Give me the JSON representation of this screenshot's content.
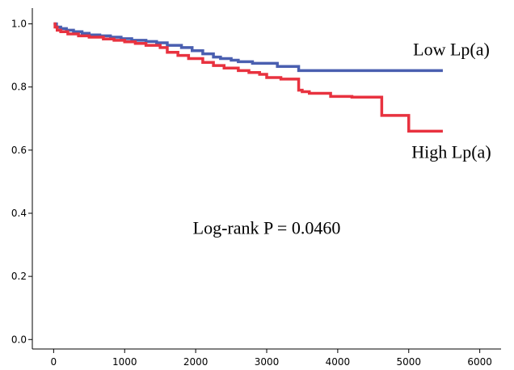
{
  "chart_data": {
    "type": "line",
    "title": "",
    "xlabel": "",
    "ylabel": "",
    "xlim": [
      -300,
      6300
    ],
    "ylim": [
      -0.03,
      1.05
    ],
    "x_ticks": [
      0,
      1000,
      2000,
      3000,
      4000,
      5000,
      6000
    ],
    "x_tick_labels": [
      "0",
      "1000",
      "2000",
      "3000",
      "4000",
      "5000",
      "6000"
    ],
    "y_ticks": [
      0.0,
      0.2,
      0.4,
      0.6,
      0.8,
      1.0
    ],
    "y_tick_labels": [
      "0.0",
      "0.2",
      "0.4",
      "0.6",
      "0.8",
      "1.0"
    ],
    "grid": false,
    "legend": "none",
    "step": true,
    "series": [
      {
        "name": "Low Lp(a)",
        "color": "#4a5fb0",
        "x": [
          0,
          40,
          100,
          180,
          280,
          400,
          500,
          650,
          800,
          950,
          1100,
          1300,
          1450,
          1600,
          1800,
          1950,
          2100,
          2250,
          2350,
          2500,
          2600,
          2700,
          2800,
          3000,
          3150,
          3300,
          3450,
          3800,
          4200,
          4600,
          5000,
          5480
        ],
        "values": [
          1.0,
          0.99,
          0.985,
          0.98,
          0.975,
          0.97,
          0.965,
          0.962,
          0.958,
          0.953,
          0.948,
          0.944,
          0.94,
          0.932,
          0.925,
          0.915,
          0.905,
          0.895,
          0.89,
          0.885,
          0.88,
          0.88,
          0.875,
          0.875,
          0.865,
          0.865,
          0.852,
          0.852,
          0.852,
          0.852,
          0.852,
          0.852
        ]
      },
      {
        "name": "High Lp(a)",
        "color": "#e8323f",
        "x": [
          0,
          20,
          50,
          100,
          200,
          350,
          500,
          700,
          850,
          1000,
          1150,
          1300,
          1500,
          1600,
          1750,
          1900,
          2100,
          2250,
          2400,
          2600,
          2750,
          2900,
          3000,
          3200,
          3450,
          3500,
          3600,
          3900,
          4200,
          4600,
          4620,
          4800,
          4900,
          5000,
          5480
        ],
        "values": [
          1.0,
          0.99,
          0.98,
          0.975,
          0.968,
          0.962,
          0.958,
          0.952,
          0.948,
          0.943,
          0.938,
          0.932,
          0.925,
          0.91,
          0.9,
          0.89,
          0.878,
          0.868,
          0.86,
          0.852,
          0.846,
          0.84,
          0.83,
          0.825,
          0.79,
          0.785,
          0.78,
          0.77,
          0.768,
          0.768,
          0.71,
          0.71,
          0.71,
          0.66,
          0.66
        ]
      }
    ],
    "annotations": [
      {
        "text": "Low Lp(a)",
        "x": 5600,
        "y": 0.9
      },
      {
        "text": "High Lp(a)",
        "x": 5600,
        "y": 0.575
      },
      {
        "text": "Log-rank P = 0.0460",
        "x": 3000,
        "y": 0.335
      }
    ]
  }
}
